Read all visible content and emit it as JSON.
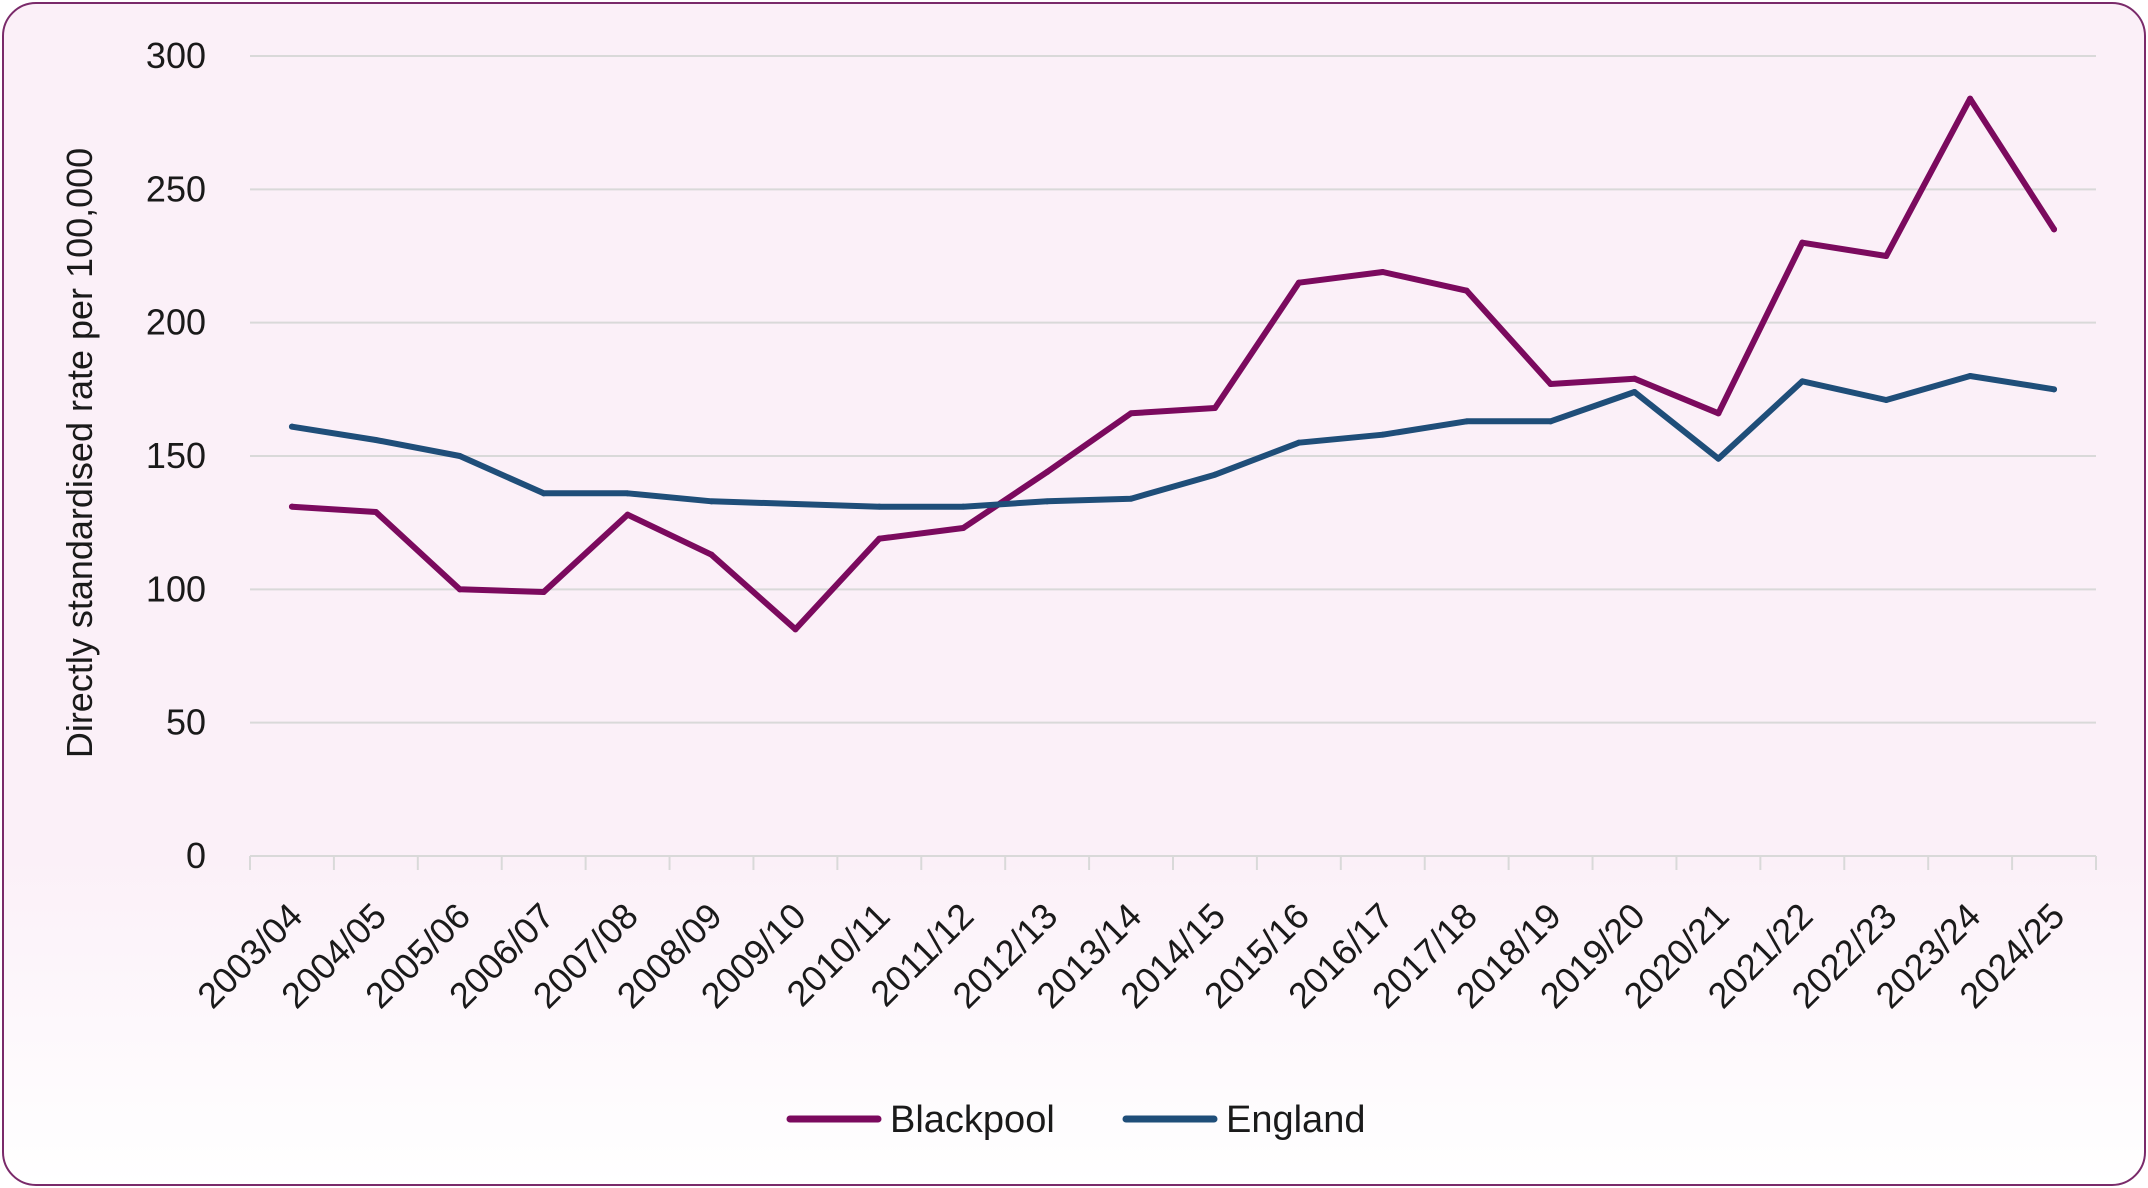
{
  "chart_data": {
    "type": "line",
    "title": "",
    "xlabel": "",
    "ylabel": "Directly standardised rate per 100,000",
    "ylim": [
      0,
      300
    ],
    "yticks": [
      0,
      50,
      100,
      150,
      200,
      250,
      300
    ],
    "grid": true,
    "legend_position": "bottom",
    "categories": [
      "2003/04",
      "2004/05",
      "2005/06",
      "2006/07",
      "2007/08",
      "2008/09",
      "2009/10",
      "2010/11",
      "2011/12",
      "2012/13",
      "2013/14",
      "2014/15",
      "2015/16",
      "2016/17",
      "2017/18",
      "2018/19",
      "2019/20",
      "2020/21",
      "2021/22",
      "2022/23",
      "2023/24",
      "2024/25"
    ],
    "series": [
      {
        "name": "Blackpool",
        "color": "#7b0a5e",
        "values": [
          131,
          129,
          100,
          99,
          128,
          113,
          85,
          119,
          123,
          144,
          166,
          168,
          215,
          219,
          212,
          177,
          179,
          166,
          230,
          225,
          284,
          235
        ]
      },
      {
        "name": "England",
        "color": "#1f4e79",
        "values": [
          161,
          156,
          150,
          136,
          136,
          133,
          132,
          131,
          131,
          133,
          134,
          143,
          155,
          158,
          163,
          163,
          174,
          149,
          178,
          171,
          180,
          175
        ]
      }
    ]
  }
}
